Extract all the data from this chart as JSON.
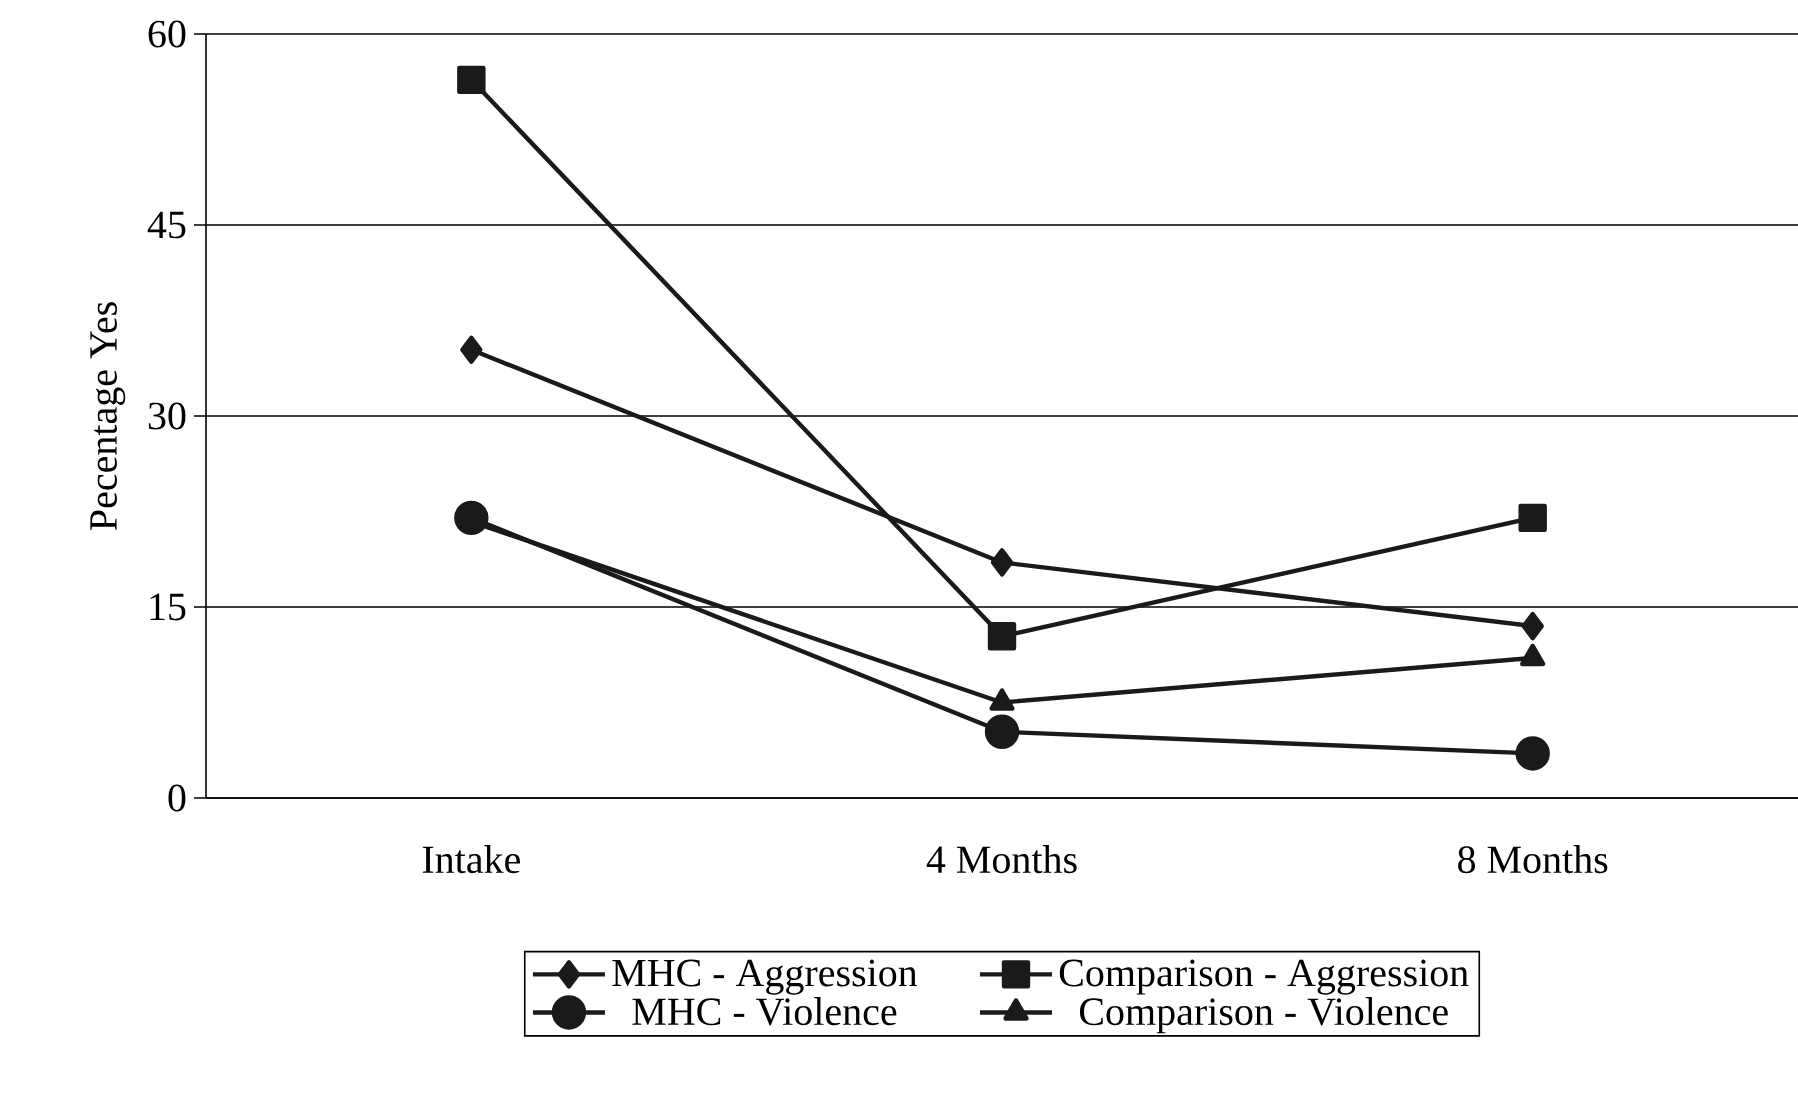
{
  "chart_data": {
    "type": "line",
    "ylabel": "Pecentage Yes",
    "categories": [
      "Intake",
      "4 Months",
      "8 Months"
    ],
    "series": [
      {
        "name": "MHC - Aggression",
        "color": "#1a1a1a",
        "marker": "diamond",
        "values": [
          35.2,
          18.5,
          13.5
        ]
      },
      {
        "name": "Comparison - Aggression",
        "color": "#1a1a1a",
        "marker": "square",
        "values": [
          56.4,
          12.7,
          22.0
        ]
      },
      {
        "name": "MHC - Violence",
        "color": "#1a1a1a",
        "marker": "circle",
        "values": [
          22.0,
          5.2,
          3.5
        ]
      },
      {
        "name": "Comparison - Violence",
        "color": "#1a1a1a",
        "marker": "triangle",
        "values": [
          21.7,
          7.5,
          11.0
        ]
      }
    ],
    "ylim": [
      0,
      60
    ],
    "yticks": [
      0,
      15,
      30,
      45,
      60
    ],
    "grid": "y",
    "legend": "bottom",
    "line_style": "solid"
  }
}
